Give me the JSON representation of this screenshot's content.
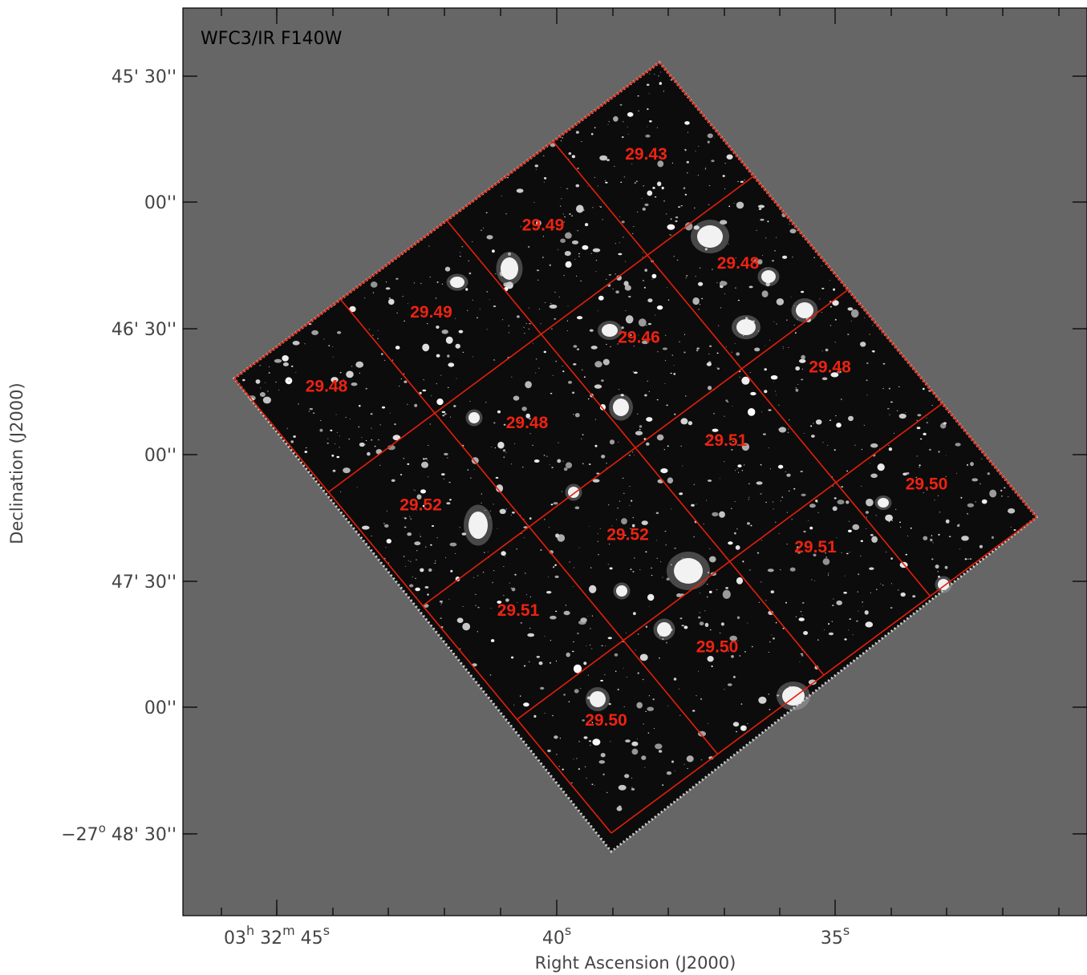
{
  "panel": {
    "title": "WFC3/IR F140W",
    "background_color": "#666666",
    "grid_color": "#e61e0a"
  },
  "axes": {
    "xlabel": "Right Ascension (J2000)",
    "ylabel": "Declination (J2000)",
    "y_ticks": [
      {
        "prefix": "",
        "deg": "",
        "rest": "45' 30''"
      },
      {
        "prefix": "",
        "deg": "",
        "rest": "00''"
      },
      {
        "prefix": "",
        "deg": "",
        "rest": "46' 30''"
      },
      {
        "prefix": "",
        "deg": "",
        "rest": "00''"
      },
      {
        "prefix": "",
        "deg": "",
        "rest": "47' 30''"
      },
      {
        "prefix": "",
        "deg": "",
        "rest": "00''"
      },
      {
        "prefix": "−27",
        "deg": "o",
        "rest": " 48' 30''"
      }
    ],
    "x_ticks": [
      {
        "parts": [
          [
            "03",
            ""
          ],
          [
            "h",
            "sup"
          ],
          [
            " 32",
            ""
          ],
          [
            "m",
            "sup"
          ],
          [
            " 45",
            ""
          ],
          [
            "s",
            "sup"
          ]
        ]
      },
      {
        "parts": [
          [
            "40",
            ""
          ],
          [
            "s",
            "sup"
          ]
        ]
      },
      {
        "parts": [
          [
            "35",
            ""
          ],
          [
            "s",
            "sup"
          ]
        ]
      }
    ]
  },
  "tiles": [
    {
      "label": "29.43"
    },
    {
      "label": "29.48"
    },
    {
      "label": "29.48"
    },
    {
      "label": "29.50"
    },
    {
      "label": "29.49"
    },
    {
      "label": "29.46"
    },
    {
      "label": "29.51"
    },
    {
      "label": "29.51"
    },
    {
      "label": "29.49"
    },
    {
      "label": "29.48"
    },
    {
      "label": "29.52"
    },
    {
      "label": "29.50"
    },
    {
      "label": "29.48"
    },
    {
      "label": "29.52"
    },
    {
      "label": "29.51"
    },
    {
      "label": "29.50"
    }
  ]
}
